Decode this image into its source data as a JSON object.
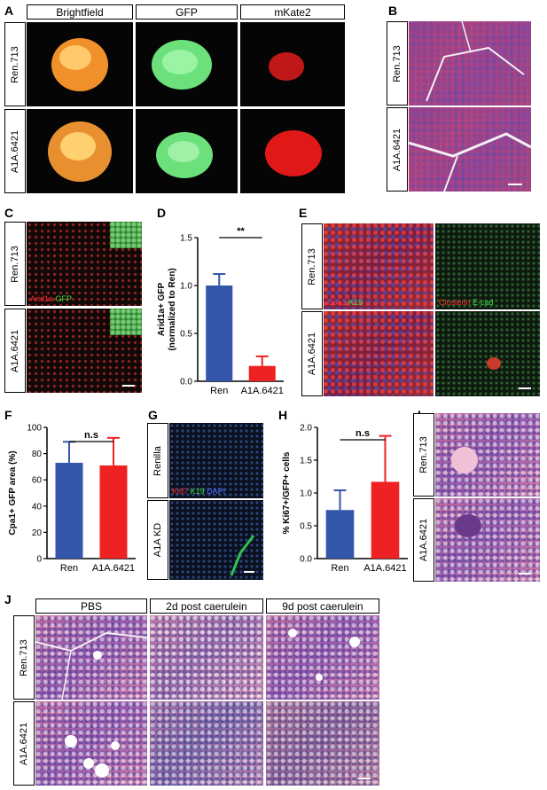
{
  "panels": {
    "A": {
      "letter": "A",
      "columns": [
        "Brightfield",
        "GFP",
        "mKate2"
      ],
      "rows": [
        "Ren.713",
        "A1A.6421"
      ]
    },
    "B": {
      "letter": "B",
      "rows": [
        "Ren.713",
        "A1A.6421"
      ]
    },
    "C": {
      "letter": "C",
      "rows": [
        "Ren.713",
        "A1A.6421"
      ],
      "label1": "Arid1a",
      "label2": "GFP"
    },
    "D": {
      "letter": "D"
    },
    "E": {
      "letter": "E",
      "rows": [
        "Ren.713",
        "A1A.6421"
      ],
      "l1a": "Cpa1",
      "l1b": "K19",
      "l2a": "Clusterin",
      "l2b": "E-cad"
    },
    "F": {
      "letter": "F"
    },
    "G": {
      "letter": "G",
      "rows": [
        "Renilla",
        "A1A KD"
      ],
      "l1": "Ki67",
      "l2": "K19",
      "l3": "DAPI"
    },
    "H": {
      "letter": "H"
    },
    "I": {
      "letter": "I",
      "rows": [
        "Ren.713",
        "A1A.6421"
      ]
    },
    "J": {
      "letter": "J",
      "columns": [
        "PBS",
        "2d post caerulein",
        "9d post caerulein"
      ],
      "rows": [
        "Ren.713",
        "A1A.6421"
      ]
    }
  },
  "chart_data": [
    {
      "id": "D",
      "type": "bar",
      "categories": [
        "Ren",
        "A1A.6421"
      ],
      "values": [
        1.0,
        0.16
      ],
      "errors": [
        0.12,
        0.1
      ],
      "colors": [
        "#3355aa",
        "#ee2222"
      ],
      "ylabel": "Arid1a+ GFP\n(normalized to Ren)",
      "ylim": [
        0,
        1.5
      ],
      "yticks": [
        "0.0",
        "0.5",
        "1.0",
        "1.5"
      ],
      "yticks_v": [
        0,
        0.5,
        1.0,
        1.5
      ],
      "annotation": "**"
    },
    {
      "id": "F",
      "type": "bar",
      "categories": [
        "Ren",
        "A1A.6421"
      ],
      "values": [
        73,
        71
      ],
      "errors": [
        16,
        21
      ],
      "colors": [
        "#3355aa",
        "#ee2222"
      ],
      "ylabel": "Cpa1+ GFP area (%)",
      "ylim": [
        0,
        100
      ],
      "yticks": [
        "0",
        "20",
        "40",
        "60",
        "80",
        "100"
      ],
      "yticks_v": [
        0,
        20,
        40,
        60,
        80,
        100
      ],
      "annotation": "n.s"
    },
    {
      "id": "H",
      "type": "bar",
      "categories": [
        "Ren",
        "A1A.6421"
      ],
      "values": [
        0.74,
        1.17
      ],
      "errors": [
        0.3,
        0.7
      ],
      "colors": [
        "#3355aa",
        "#ee2222"
      ],
      "ylabel": "% Ki67+/GFP+ cells",
      "ylim": [
        0,
        2.0
      ],
      "yticks": [
        "0.0",
        "0.5",
        "1.0",
        "1.5",
        "2.0"
      ],
      "yticks_v": [
        0,
        0.5,
        1.0,
        1.5,
        2.0
      ],
      "annotation": "n.s"
    }
  ]
}
